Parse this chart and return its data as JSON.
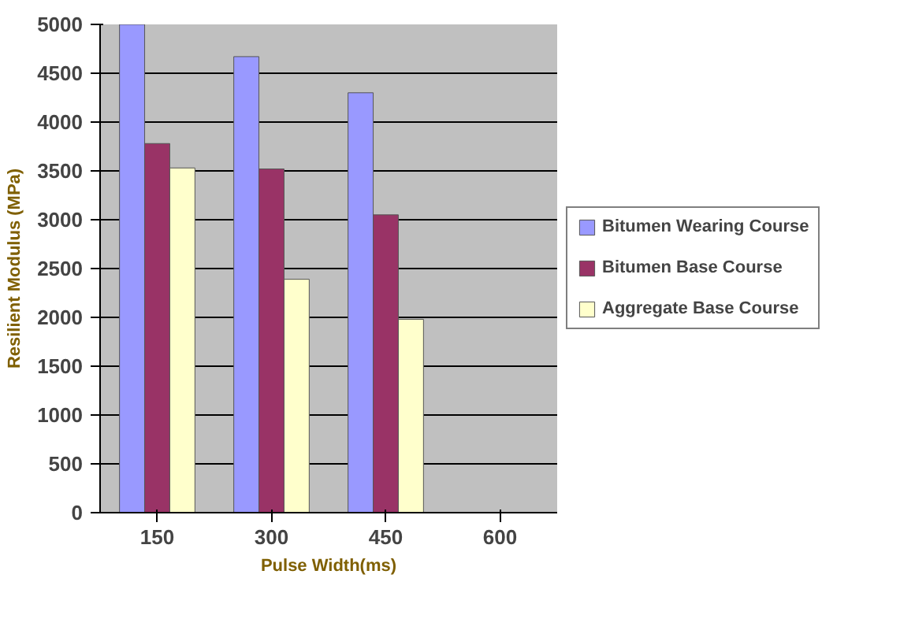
{
  "chart_data": {
    "type": "bar",
    "xlabel": "Pulse Width(ms)",
    "ylabel": "Resilient Modulus (MPa)",
    "categories": [
      "150",
      "300",
      "450",
      "600"
    ],
    "series": [
      {
        "name": "Bitumen Wearing Course",
        "color": "#9999ff",
        "values": [
          5000,
          4670,
          4300,
          null
        ]
      },
      {
        "name": "Bitumen Base Course",
        "color": "#993366",
        "values": [
          3780,
          3520,
          3050,
          null
        ]
      },
      {
        "name": "Aggregate Base Course",
        "color": "#ffffcc",
        "values": [
          3530,
          2390,
          1980,
          null
        ]
      }
    ],
    "ylim": [
      0,
      5000
    ],
    "yticks": [
      0,
      500,
      1000,
      1500,
      2000,
      2500,
      3000,
      3500,
      4000,
      4500,
      5000
    ],
    "grid": "y",
    "legend": "right"
  }
}
